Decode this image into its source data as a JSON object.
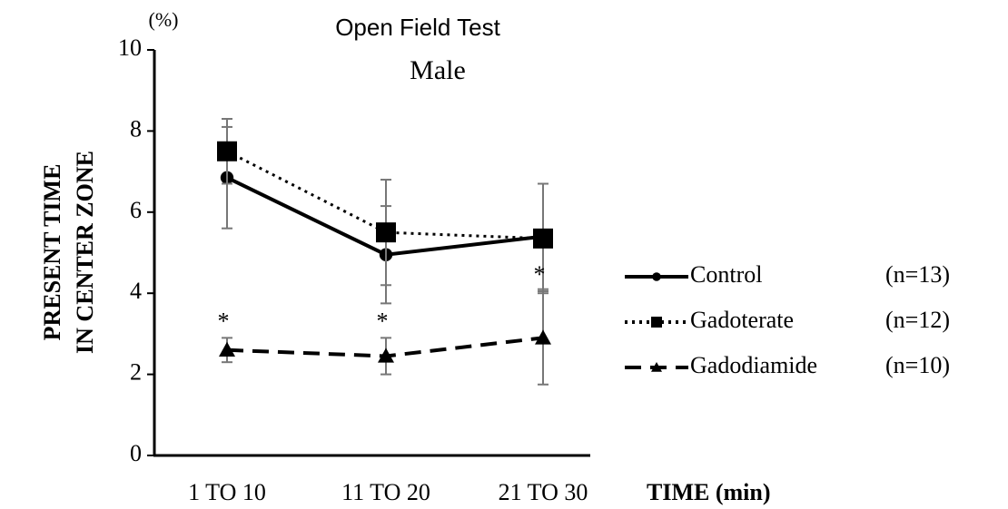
{
  "chart_data": {
    "type": "line",
    "title": "Open Field Test",
    "subtitle": "Male",
    "y_unit": "(%)",
    "ylabel": [
      "PRESENT TIME",
      "IN CENTER ZONE"
    ],
    "xlabel": "TIME (min)",
    "categories": [
      "1 TO 10",
      "11 TO 20",
      "21 TO 30"
    ],
    "ylim": [
      0,
      10
    ],
    "yticks": [
      0,
      2,
      4,
      6,
      8,
      10
    ],
    "grid": false,
    "legend": "right",
    "series": [
      {
        "name": "Control",
        "n": "(n=13)",
        "color": "#000000",
        "dash": "solid",
        "marker": "circle",
        "values": [
          6.85,
          4.95,
          5.4
        ],
        "errors": [
          1.25,
          1.2,
          1.3
        ]
      },
      {
        "name": "Gadoterate",
        "n": "(n=12)",
        "color": "#000000",
        "dash": "dotted",
        "marker": "square",
        "values": [
          7.5,
          5.5,
          5.35
        ],
        "errors": [
          0.8,
          1.3,
          1.35
        ]
      },
      {
        "name": "Gadodiamide",
        "n": "(n=10)",
        "color": "#000000",
        "dash": "dashed",
        "marker": "triangle",
        "values": [
          2.6,
          2.45,
          2.9
        ],
        "errors": [
          0.3,
          0.45,
          1.15
        ],
        "significance": [
          "*",
          "*",
          "*"
        ]
      }
    ]
  }
}
